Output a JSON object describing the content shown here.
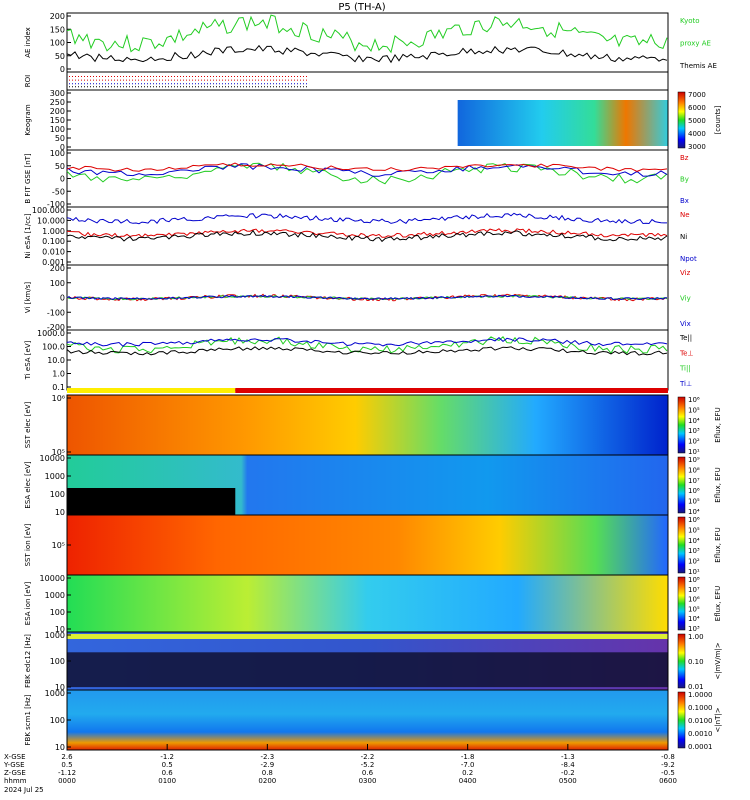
{
  "title": "P5 (TH-A)",
  "date_label": "2024 Jul 25",
  "colors": {
    "green": "#22cc22",
    "red": "#dd0000",
    "blue": "#0000cc",
    "black": "#000000"
  },
  "chart_data": {
    "type": "multi-panel time series and spectrograms",
    "x_axis": {
      "time_ticks": [
        "0000",
        "0100",
        "0200",
        "0300",
        "0400",
        "0500",
        "0600"
      ],
      "x_gse": [
        "2.6",
        "-1.2",
        "-2.3",
        "-2.2",
        "-1.8",
        "-1.3",
        "-0.8"
      ],
      "y_gse": [
        "0.5",
        "0.5",
        "-2.9",
        "-5.2",
        "-7.0",
        "-8.4",
        "-9.2"
      ],
      "z_gse": [
        "-1.12",
        "0.6",
        "0.8",
        "0.6",
        "0.2",
        "-0.2",
        "-0.5"
      ],
      "row_labels": [
        "X-GSE",
        "Y-GSE",
        "Z-GSE",
        "hhmm"
      ]
    },
    "panels": [
      {
        "id": "ae",
        "ylabel": "AE index",
        "yticks": [
          "200",
          "150",
          "100",
          "50",
          "0"
        ],
        "legend": [
          {
            "name": "Kyoto",
            "color": "green"
          },
          {
            "name": "proxy AE",
            "color": "green"
          },
          {
            "name": "Themis AE",
            "color": "black"
          }
        ]
      },
      {
        "id": "roi",
        "ylabel": "ROI"
      },
      {
        "id": "keogram",
        "ylabel": "Keogram",
        "yticks": [
          "300",
          "250",
          "200",
          "150",
          "100",
          "50",
          "0"
        ],
        "colorbar": {
          "ticks": [
            "7000",
            "6000",
            "5000",
            "4000",
            "3000"
          ],
          "label": "[counts]"
        }
      },
      {
        "id": "bfield",
        "ylabel": "B FIT GSE [nT]",
        "yticks": [
          "100",
          "50",
          "0",
          "-50",
          "-100"
        ],
        "legend": [
          {
            "name": "Bz",
            "color": "red"
          },
          {
            "name": "By",
            "color": "green"
          },
          {
            "name": "Bx",
            "color": "blue"
          }
        ]
      },
      {
        "id": "density",
        "ylabel": "Ni eSA [1/cc]",
        "yticks": [
          "100.000",
          "10.000",
          "1.000",
          "0.100",
          "0.010",
          "0.001"
        ],
        "legend": [
          {
            "name": "Ne",
            "color": "red"
          },
          {
            "name": "Ni",
            "color": "black"
          },
          {
            "name": "Npot",
            "color": "blue"
          }
        ]
      },
      {
        "id": "velocity",
        "ylabel": "Vi [km/s]",
        "yticks": [
          "200",
          "100",
          "0",
          "-100",
          "-200"
        ],
        "legend": [
          {
            "name": "Viz",
            "color": "red"
          },
          {
            "name": "Viy",
            "color": "green"
          },
          {
            "name": "Vix",
            "color": "blue"
          }
        ]
      },
      {
        "id": "temperature",
        "ylabel": "Ti eSA [eV]",
        "yticks": [
          "1000.0",
          "100.0",
          "10.0",
          "1.0",
          "0.1"
        ],
        "legend": [
          {
            "name": "Te||",
            "color": "black"
          },
          {
            "name": "Te⊥",
            "color": "red"
          },
          {
            "name": "Ti||",
            "color": "green"
          },
          {
            "name": "Ti⊥",
            "color": "blue"
          }
        ]
      },
      {
        "id": "sst_e",
        "ylabel": "SST elec [eV]",
        "yticks": [
          "10⁶",
          "10⁵"
        ],
        "colorbar": {
          "ticks": [
            "10⁶",
            "10⁵",
            "10⁴",
            "10³",
            "10²",
            "10¹"
          ],
          "label": "Eflux, EFU"
        }
      },
      {
        "id": "esa_e",
        "ylabel": "ESA elec [eV]",
        "yticks": [
          "10000",
          "1000",
          "100",
          "10"
        ],
        "colorbar": {
          "ticks": [
            "10⁹",
            "10⁸",
            "10⁷",
            "10⁶",
            "10⁵",
            "10⁴"
          ],
          "label": "Eflux, EFU"
        }
      },
      {
        "id": "sst_i",
        "ylabel": "SST ion [eV]",
        "yticks": [
          "10⁵"
        ],
        "colorbar": {
          "ticks": [
            "10⁶",
            "10⁵",
            "10⁴",
            "10³",
            "10²",
            "10¹"
          ],
          "label": "Eflux, EFU"
        }
      },
      {
        "id": "esa_i",
        "ylabel": "ESA ion [eV]",
        "yticks": [
          "10000",
          "1000",
          "100",
          "10"
        ],
        "colorbar": {
          "ticks": [
            "10⁸",
            "10⁷",
            "10⁶",
            "10⁵",
            "10⁴",
            "10³"
          ],
          "label": "Eflux, EFU"
        }
      },
      {
        "id": "fbk_e",
        "ylabel": "FBK edc12 [Hz]",
        "yticks": [
          "1000",
          "100",
          "10"
        ],
        "colorbar": {
          "ticks": [
            "1.00",
            "0.10",
            "0.01"
          ],
          "label": "<|mV/m|>"
        }
      },
      {
        "id": "fbk_b",
        "ylabel": "FBK scm1 [Hz]",
        "yticks": [
          "1000",
          "100",
          "10"
        ],
        "colorbar": {
          "ticks": [
            "1.0000",
            "0.1000",
            "0.0100",
            "0.0010",
            "0.0001"
          ],
          "label": "<|nT|>"
        }
      }
    ]
  }
}
